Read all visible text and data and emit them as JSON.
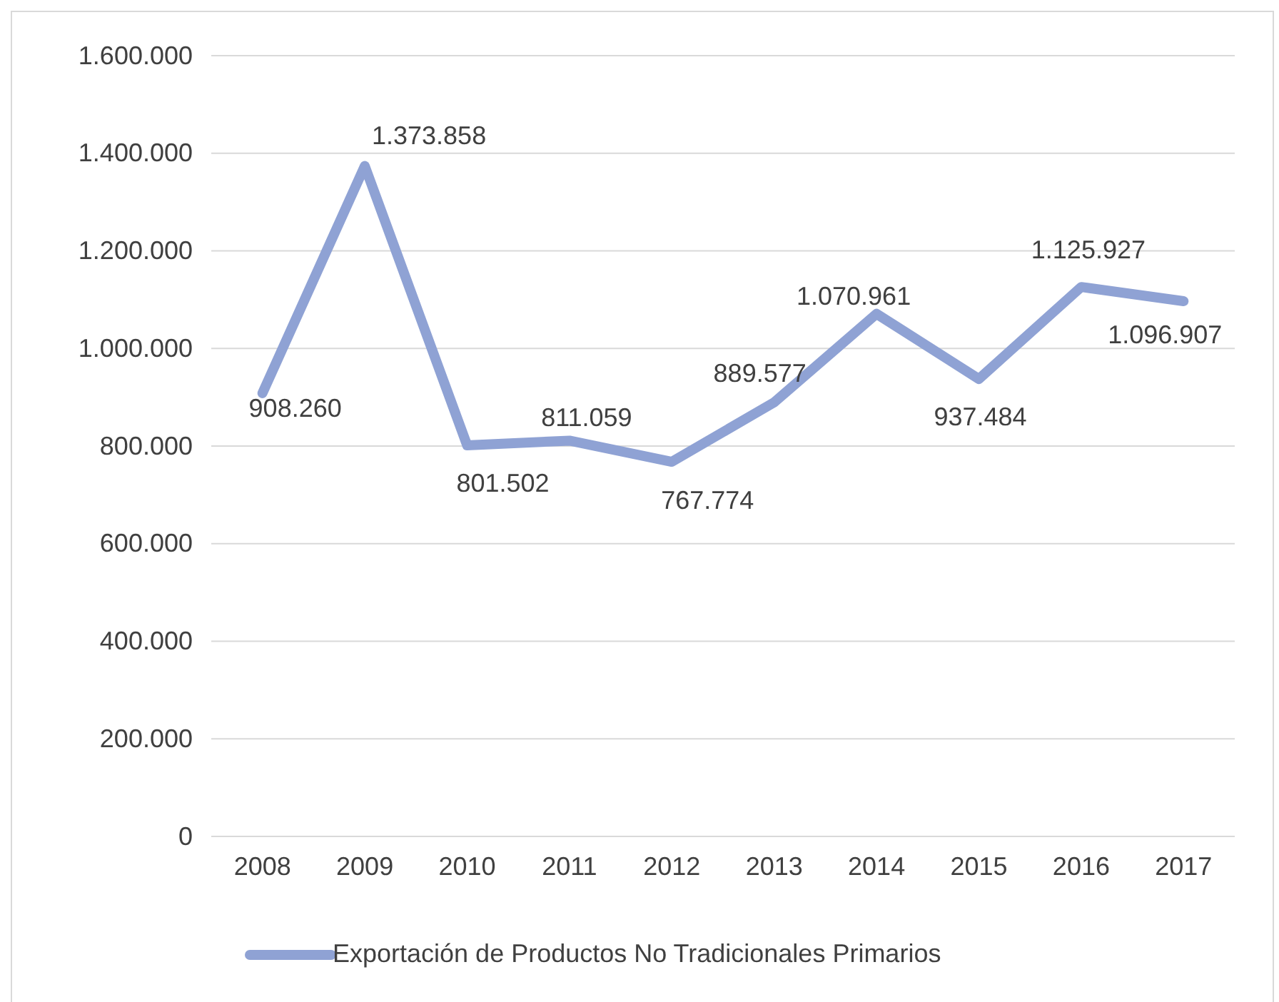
{
  "chart_data": {
    "type": "line",
    "categories": [
      "2008",
      "2009",
      "2010",
      "2011",
      "2012",
      "2013",
      "2014",
      "2015",
      "2016",
      "2017"
    ],
    "series": [
      {
        "name": "Exportación de Productos No Tradicionales Primarios",
        "color": "#8fa2d4",
        "values": [
          908260,
          1373858,
          801502,
          811059,
          767774,
          889577,
          1070961,
          937484,
          1125927,
          1096907
        ],
        "value_labels": [
          "908.260",
          "1.373.858",
          "801.502",
          "811.059",
          "767.774",
          "889.577",
          "1.070.961",
          "937.484",
          "1.125.927",
          "1.096.907"
        ]
      }
    ],
    "ylim": [
      0,
      1600000
    ],
    "yticks": [
      0,
      {
        "value": 200000,
        "label": "200.000"
      },
      {
        "value": 400000,
        "label": "400.000"
      },
      {
        "value": 600000,
        "label": "600.000"
      },
      {
        "value": 800000,
        "label": "800.000"
      },
      {
        "value": 1000000,
        "label": "1.000.000"
      },
      {
        "value": 1200000,
        "label": "1.200.000"
      },
      {
        "value": 1400000,
        "label": "1.400.000"
      },
      {
        "value": 1600000,
        "label": "1.600.000"
      }
    ],
    "grid": "y",
    "legend": "bottom",
    "marker": "none",
    "line_style": "solid"
  }
}
